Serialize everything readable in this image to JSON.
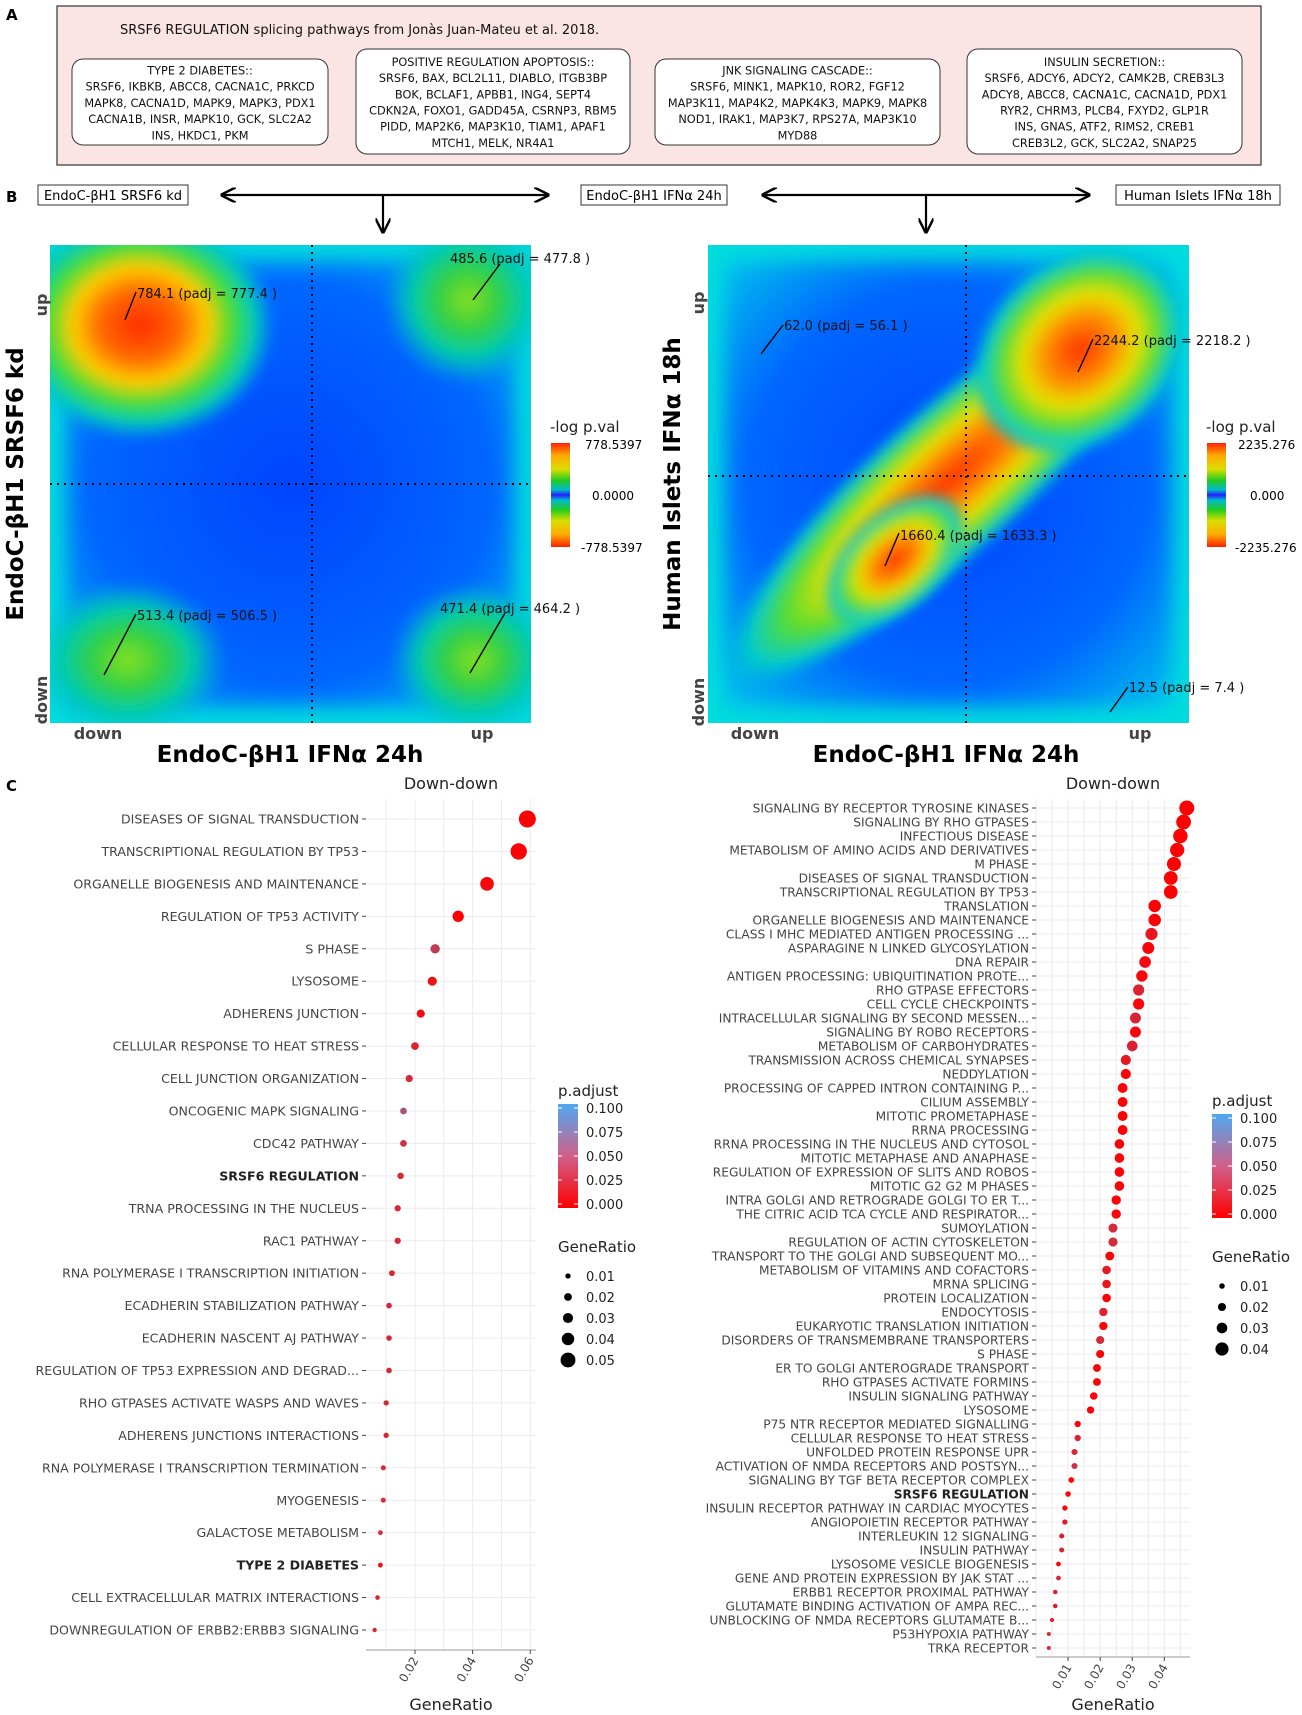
{
  "figure": {
    "panel_a_letter": "A",
    "panel_b_letter": "B",
    "panel_c_letter": "C"
  },
  "panel_a": {
    "title": "SRSF6 REGULATION splicing pathways from Jonàs Juan-Mateu et al. 2018.",
    "boxes": [
      {
        "header": "TYPE 2 DIABETES::",
        "lines": [
          "SRSF6, IKBKB, ABCC8, CACNA1C, PRKCD",
          "MAPK8, CACNA1D, MAPK9, MAPK3, PDX1",
          "CACNA1B, INSR, MAPK10, GCK, SLC2A2",
          "INS, HKDC1, PKM"
        ]
      },
      {
        "header": "POSITIVE REGULATION APOPTOSIS::",
        "lines": [
          "SRSF6, BAX, BCL2L11, DIABLO, ITGB3BP",
          "BOK, BCLAF1, APBB1, ING4, SEPT4",
          "CDKN2A, FOXO1, GADD45A, CSRNP3, RBM5",
          "PIDD, MAP2K6, MAP3K10, TIAM1, APAF1",
          "MTCH1, MELK, NR4A1"
        ]
      },
      {
        "header": "JNK SIGNALING CASCADE::",
        "lines": [
          "SRSF6, MINK1, MAPK10, ROR2, FGF12",
          "MAP3K11, MAP4K2, MAPK4K3, MAPK9, MAPK8",
          "NOD1, IRAK1, MAP3K7, RPS27A, MAP3K10",
          "MYD88"
        ]
      },
      {
        "header": "INSULIN SECRETION::",
        "lines": [
          "SRSF6, ADCY6, ADCY2, CAMK2B, CREB3L3",
          "ADCY8, ABCC8, CACNA1C, CACNA1D, PDX1",
          "RYR2, CHRM3, PLCB4, FXYD2, GLP1R",
          "INS, GNAS, ATF2, RIMS2, CREB1",
          "CREB3L2, GCK, SLC2A2, SNAP25"
        ]
      }
    ]
  },
  "panel_b": {
    "labels": [
      "EndoC-βH1 SRSF6 kd",
      "EndoC-βH1 IFNα 24h",
      "Human Islets IFNα 18h"
    ]
  },
  "chart_data": [
    {
      "type": "heatmap",
      "xlabel": "EndoC-βH1 IFNα 24h",
      "ylabel": "EndoC-βH1 SRSF6 kd",
      "x_ticks": [
        "down",
        "up"
      ],
      "y_ticks": [
        "up",
        "down"
      ],
      "colorbar_title": "-log p.val",
      "colorbar_ticks": [
        "778.5397",
        "0.0000",
        "-778.5397"
      ],
      "annotations": [
        {
          "label": "784.1 (padj = 777.4 )",
          "quadrant": "up-down"
        },
        {
          "label": "485.6 (padj = 477.8 )",
          "quadrant": "up-up"
        },
        {
          "label": "513.4 (padj = 506.5 )",
          "quadrant": "down-down"
        },
        {
          "label": "471.4 (padj = 464.2 )",
          "quadrant": "down-up"
        }
      ]
    },
    {
      "type": "heatmap",
      "xlabel": "EndoC-βH1 IFNα 24h",
      "ylabel": "Human Islets IFNα 18h",
      "x_ticks": [
        "down",
        "up"
      ],
      "y_ticks": [
        "up",
        "down"
      ],
      "colorbar_title": "-log p.val",
      "colorbar_ticks": [
        "2235.276",
        "0.000",
        "-2235.276"
      ],
      "annotations": [
        {
          "label": "62.0 (padj = 56.1 )",
          "quadrant": "up-down"
        },
        {
          "label": "2244.2 (padj = 2218.2 )",
          "quadrant": "up-up"
        },
        {
          "label": "1660.4 (padj = 1633.3 )",
          "quadrant": "down-down"
        },
        {
          "label": "12.5 (padj = 7.4 )",
          "quadrant": "down-up"
        }
      ]
    },
    {
      "type": "scatter",
      "title": "Down-down",
      "xlabel": "GeneRatio",
      "xlim": [
        0.003,
        0.062
      ],
      "x_ticks": [
        0.02,
        0.04,
        0.06
      ],
      "x_tick_labels": [
        "0.02",
        "0.04",
        "0.06"
      ],
      "bold_terms": [
        "SRSF6 REGULATION",
        "TYPE 2 DIABETES"
      ],
      "terms": [
        "DISEASES OF SIGNAL TRANSDUCTION",
        "TRANSCRIPTIONAL REGULATION BY TP53",
        "ORGANELLE BIOGENESIS AND MAINTENANCE",
        "REGULATION OF TP53 ACTIVITY",
        "S PHASE",
        "LYSOSOME",
        "ADHERENS JUNCTION",
        "CELLULAR RESPONSE TO HEAT STRESS",
        "CELL JUNCTION ORGANIZATION",
        "ONCOGENIC MAPK SIGNALING",
        "CDC42 PATHWAY",
        "SRSF6 REGULATION",
        "TRNA PROCESSING IN THE NUCLEUS",
        "RAC1 PATHWAY",
        "RNA POLYMERASE I TRANSCRIPTION INITIATION",
        "ECADHERIN STABILIZATION PATHWAY",
        "ECADHERIN NASCENT AJ PATHWAY",
        "REGULATION OF TP53 EXPRESSION AND DEGRAD...",
        "RHO GTPASES ACTIVATE WASPS AND WAVES",
        "ADHERENS JUNCTIONS INTERACTIONS",
        "RNA POLYMERASE I TRANSCRIPTION TERMINATION",
        "MYOGENESIS",
        "GALACTOSE METABOLISM",
        "TYPE 2 DIABETES",
        "CELL EXTRACELLULAR MATRIX INTERACTIONS",
        "DOWNREGULATION OF ERBB2:ERBB3 SIGNALING"
      ],
      "gene_ratio": [
        0.059,
        0.056,
        0.045,
        0.035,
        0.027,
        0.026,
        0.022,
        0.02,
        0.018,
        0.016,
        0.016,
        0.015,
        0.014,
        0.014,
        0.012,
        0.011,
        0.011,
        0.011,
        0.01,
        0.01,
        0.009,
        0.009,
        0.008,
        0.008,
        0.007,
        0.006
      ],
      "p_adjust": [
        0.001,
        0.002,
        0.006,
        0.002,
        0.035,
        0.01,
        0.008,
        0.02,
        0.025,
        0.05,
        0.03,
        0.025,
        0.025,
        0.025,
        0.02,
        0.022,
        0.022,
        0.022,
        0.025,
        0.022,
        0.025,
        0.025,
        0.03,
        0.01,
        0.022,
        0.022
      ],
      "legend_padjust_title": "p.adjust",
      "legend_padjust_ticks": [
        "0.100",
        "0.075",
        "0.050",
        "0.025",
        "0.000"
      ],
      "legend_size_title": "GeneRatio",
      "legend_size_values": [
        0.01,
        0.02,
        0.03,
        0.04,
        0.05
      ],
      "legend_size_labels": [
        "0.01",
        "0.02",
        "0.03",
        "0.04",
        "0.05"
      ],
      "color_scale": [
        "#ff0000",
        "#4fa8f0"
      ]
    },
    {
      "type": "scatter",
      "title": "Down-down",
      "xlabel": "GeneRatio",
      "xlim": [
        0.0,
        0.048
      ],
      "x_ticks": [
        0.01,
        0.02,
        0.03,
        0.04
      ],
      "x_tick_labels": [
        "0.01",
        "0.02",
        "0.03",
        "0.04"
      ],
      "bold_terms": [
        "SRSF6 REGULATION"
      ],
      "terms": [
        "SIGNALING BY RECEPTOR TYROSINE KINASES",
        "SIGNALING BY RHO GTPASES",
        "INFECTIOUS DISEASE",
        "METABOLISM OF AMINO ACIDS AND DERIVATIVES",
        "M PHASE",
        "DISEASES OF SIGNAL TRANSDUCTION",
        "TRANSCRIPTIONAL REGULATION BY TP53",
        "TRANSLATION",
        "ORGANELLE BIOGENESIS AND MAINTENANCE",
        "CLASS I MHC MEDIATED ANTIGEN PROCESSING ...",
        "ASPARAGINE N LINKED GLYCOSYLATION",
        "DNA REPAIR",
        "ANTIGEN PROCESSING: UBIQUITINATION PROTE...",
        "RHO GTPASE EFFECTORS",
        "CELL CYCLE CHECKPOINTS",
        "INTRACELLULAR SIGNALING BY SECOND MESSEN...",
        "SIGNALING BY ROBO RECEPTORS",
        "METABOLISM OF CARBOHYDRATES",
        "TRANSMISSION ACROSS CHEMICAL SYNAPSES",
        "NEDDYLATION",
        "PROCESSING OF CAPPED INTRON CONTAINING P...",
        "CILIUM ASSEMBLY",
        "MITOTIC PROMETAPHASE",
        "RRNA PROCESSING",
        "RRNA PROCESSING IN THE NUCLEUS AND CYTOSOL",
        "MITOTIC METAPHASE AND ANAPHASE",
        "REGULATION OF EXPRESSION OF SLITS AND ROBOS",
        "MITOTIC G2 G2 M PHASES",
        "INTRA GOLGI AND RETROGRADE GOLGI TO ER T...",
        "THE CITRIC ACID TCA CYCLE AND RESPIRATOR...",
        "SUMOYLATION",
        "REGULATION OF ACTIN CYTOSKELETON",
        "TRANSPORT TO THE GOLGI AND SUBSEQUENT MO...",
        "METABOLISM OF VITAMINS AND COFACTORS",
        "MRNA SPLICING",
        "PROTEIN LOCALIZATION",
        "ENDOCYTOSIS",
        "EUKARYOTIC TRANSLATION INITIATION",
        "DISORDERS OF TRANSMEMBRANE TRANSPORTERS",
        "S PHASE",
        "ER TO GOLGI ANTEROGRADE TRANSPORT",
        "RHO GTPASES ACTIVATE FORMINS",
        "INSULIN SIGNALING PATHWAY",
        "LYSOSOME",
        "P75 NTR RECEPTOR MEDIATED SIGNALLING",
        "CELLULAR RESPONSE TO HEAT STRESS",
        "UNFOLDED PROTEIN RESPONSE UPR",
        "ACTIVATION OF NMDA RECEPTORS AND POSTSYN...",
        "SIGNALING BY TGF BETA RECEPTOR COMPLEX",
        "SRSF6 REGULATION",
        "INSULIN RECEPTOR PATHWAY IN CARDIAC MYOCYTES",
        "ANGIOPOIETIN RECEPTOR PATHWAY",
        "INTERLEUKIN 12 SIGNALING",
        "INSULIN PATHWAY",
        "LYSOSOME VESICLE BIOGENESIS",
        "GENE AND PROTEIN EXPRESSION BY JAK STAT ...",
        "ERBB1 RECEPTOR PROXIMAL PATHWAY",
        "GLUTAMATE BINDING ACTIVATION OF AMPA REC...",
        "UNBLOCKING OF NMDA RECEPTORS GLUTAMATE B...",
        "P53HYPOXIA PATHWAY",
        "TRKA RECEPTOR"
      ],
      "gene_ratio": [
        0.047,
        0.046,
        0.045,
        0.044,
        0.043,
        0.042,
        0.042,
        0.037,
        0.037,
        0.036,
        0.035,
        0.034,
        0.033,
        0.032,
        0.032,
        0.031,
        0.031,
        0.03,
        0.028,
        0.028,
        0.027,
        0.027,
        0.027,
        0.027,
        0.026,
        0.026,
        0.026,
        0.026,
        0.025,
        0.025,
        0.024,
        0.024,
        0.023,
        0.022,
        0.022,
        0.022,
        0.021,
        0.021,
        0.02,
        0.02,
        0.019,
        0.019,
        0.018,
        0.017,
        0.013,
        0.013,
        0.012,
        0.012,
        0.011,
        0.01,
        0.009,
        0.009,
        0.008,
        0.008,
        0.007,
        0.007,
        0.006,
        0.006,
        0.005,
        0.004,
        0.004
      ],
      "p_adjust": [
        0.001,
        0.001,
        0.001,
        0.001,
        0.002,
        0.001,
        0.002,
        0.002,
        0.002,
        0.012,
        0.003,
        0.006,
        0.004,
        0.02,
        0.004,
        0.022,
        0.004,
        0.02,
        0.015,
        0.003,
        0.003,
        0.003,
        0.002,
        0.002,
        0.002,
        0.004,
        0.003,
        0.003,
        0.003,
        0.003,
        0.025,
        0.025,
        0.002,
        0.015,
        0.01,
        0.002,
        0.02,
        0.002,
        0.025,
        0.003,
        0.003,
        0.003,
        0.003,
        0.003,
        0.003,
        0.022,
        0.022,
        0.03,
        0.003,
        0.003,
        0.003,
        0.015,
        0.015,
        0.02,
        0.003,
        0.022,
        0.02,
        0.015,
        0.02,
        0.025,
        0.025
      ],
      "legend_padjust_title": "p.adjust",
      "legend_padjust_ticks": [
        "0.100",
        "0.075",
        "0.050",
        "0.025",
        "0.000"
      ],
      "legend_size_title": "GeneRatio",
      "legend_size_values": [
        0.01,
        0.02,
        0.03,
        0.04
      ],
      "legend_size_labels": [
        "0.01",
        "0.02",
        "0.03",
        "0.04"
      ],
      "color_scale": [
        "#ff0000",
        "#4fa8f0"
      ]
    }
  ]
}
